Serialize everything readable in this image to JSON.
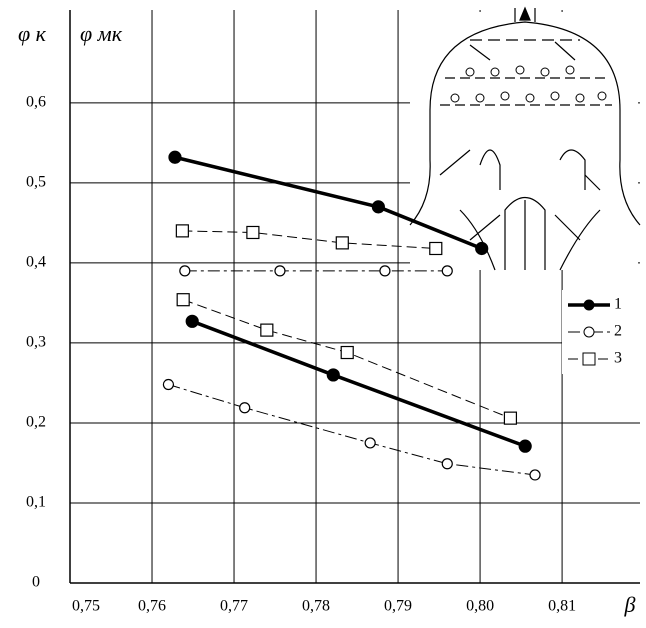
{
  "chart_data": {
    "type": "line",
    "y_labels": [
      "φ к",
      "φ мк"
    ],
    "x_label": "β",
    "xlim": [
      0.75,
      0.8195
    ],
    "xticks": [
      {
        "value": 0.75,
        "label": "0,75"
      },
      {
        "value": 0.76,
        "label": "0,76"
      },
      {
        "value": 0.77,
        "label": "0,77"
      },
      {
        "value": 0.78,
        "label": "0,78"
      },
      {
        "value": 0.79,
        "label": "0,79"
      },
      {
        "value": 0.8,
        "label": "0,80"
      },
      {
        "value": 0.81,
        "label": "0,81"
      }
    ],
    "ylim": [
      0,
      0.716
    ],
    "yticks": [
      0,
      {
        "value": 0.1,
        "label": "0,1"
      },
      {
        "value": 0.2,
        "label": "0,2"
      },
      {
        "value": 0.3,
        "label": "0,3"
      },
      {
        "value": 0.4,
        "label": "0,4"
      },
      {
        "value": 0.5,
        "label": "0,5"
      },
      {
        "value": 0.6,
        "label": "0,6"
      }
    ],
    "grid": true,
    "legend": "right",
    "series": [
      {
        "name": "1",
        "color": "#000000",
        "marker": "filled-circle",
        "style": "solid",
        "curves": [
          {
            "x": [
              0.7628,
              0.7876,
              0.8002
            ],
            "values": [
              0.532,
              0.47,
              0.418
            ]
          },
          {
            "x": [
              0.7649,
              0.7821,
              0.8055
            ],
            "values": [
              0.327,
              0.26,
              0.171
            ]
          }
        ]
      },
      {
        "name": "2",
        "color": "#000000",
        "marker": "circle",
        "style": "dashdot",
        "curves": [
          {
            "x": [
              0.764,
              0.7756,
              0.7884,
              0.796
            ],
            "values": [
              0.39,
              0.39,
              0.39,
              0.39
            ]
          },
          {
            "x": [
              0.762,
              0.7713,
              0.7866,
              0.796,
              0.8067
            ],
            "values": [
              0.248,
              0.219,
              0.175,
              0.149,
              0.135
            ]
          }
        ]
      },
      {
        "name": "3",
        "color": "#000000",
        "marker": "square",
        "style": "dashed",
        "curves": [
          {
            "x": [
              0.7637,
              0.7723,
              0.7832,
              0.7946
            ],
            "values": [
              0.44,
              0.438,
              0.425,
              0.418
            ]
          },
          {
            "x": [
              0.7638,
              0.774,
              0.7838,
              0.8037
            ],
            "values": [
              0.354,
              0.316,
              0.288,
              0.206
            ]
          }
        ]
      }
    ]
  }
}
